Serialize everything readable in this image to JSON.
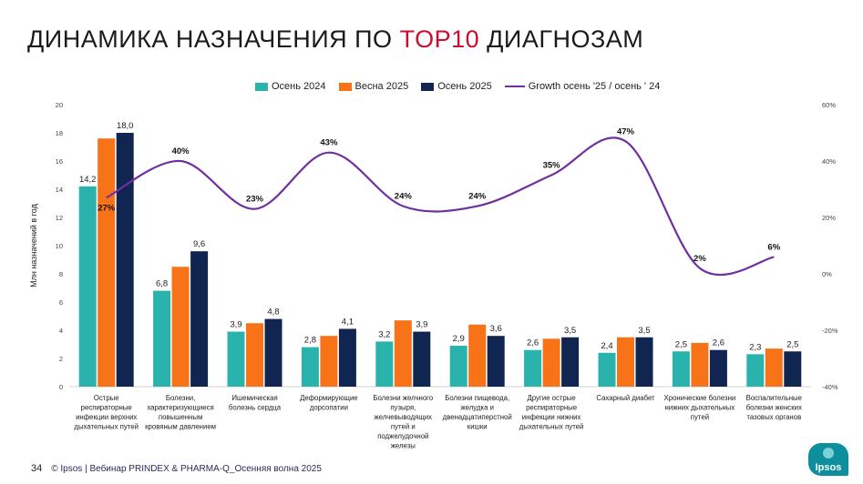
{
  "page": {
    "title_prefix": "ДИНАМИКА НАЗНАЧЕНИЯ ПО ",
    "title_highlight": "TOP10",
    "title_suffix": " ДИАГНОЗАМ",
    "page_number": "34",
    "footer_text": "© Ipsos | Вебинар PRINDEX & PHARMA-Q_Осенняя волна 2025",
    "logo_text": "Ipsos"
  },
  "colors": {
    "autumn_2024": "#2ab3ac",
    "spring_2025": "#f87318",
    "autumn_2025": "#102550",
    "growth": "#7030a0",
    "title_highlight": "#c8102e"
  },
  "chart_data": {
    "type": "bar",
    "title": "ДИНАМИКА НАЗНАЧЕНИЯ ПО TOP10 ДИАГНОЗАМ",
    "ylabel": "Млн назначений в год",
    "ylim": [
      0,
      20
    ],
    "yticks": [
      "0",
      "2",
      "4",
      "6",
      "8",
      "10",
      "12",
      "14",
      "16",
      "18",
      "20"
    ],
    "y2lim": [
      -40,
      60
    ],
    "y2ticks": [
      "-40%",
      "-20%",
      "0%",
      "20%",
      "40%",
      "60%"
    ],
    "categories": [
      "Острые респираторные инфекции верхних дыхательных путей",
      "Болезни, характеризующиеся повышенным кровяным давлением",
      "Ишемическая болезнь сердца",
      "Деформирующие дорсопатии",
      "Болезни желчного пузыря, желчевыводящих путей и поджелудочной железы",
      "Болезни пищевода, желудка и двенадцатиперстной кишки",
      "Другие острые респираторные инфекции нижних дыхательных путей",
      "Сахарный диабет",
      "Хронические болезни нижних дыхательных путей",
      "Воспалительные болезни женских тазовых органов"
    ],
    "category_lines": [
      [
        "Острые",
        "респираторные",
        "инфекции верхних",
        "дыхательных путей"
      ],
      [
        "Болезни,",
        "характеризующиеся",
        "повышенным",
        "кровяным давлением"
      ],
      [
        "Ишемическая",
        "болезнь сердца"
      ],
      [
        "Деформирующие",
        "дорсопатии"
      ],
      [
        "Болезни желчного",
        "пузыря,",
        "желчевыводящих",
        "путей и",
        "поджелудочной",
        "железы"
      ],
      [
        "Болезни пищевода,",
        "желудка и",
        "двенадцатиперстной",
        "кишки"
      ],
      [
        "Другие острые",
        "респираторные",
        "инфекции нижних",
        "дыхательных путей"
      ],
      [
        "Сахарный диабет"
      ],
      [
        "Хронические болезни",
        "нижних дыхательных",
        "путей"
      ],
      [
        "Воспалительные",
        "болезни женских",
        "тазовых органов"
      ]
    ],
    "series": [
      {
        "name": "Осень 2024",
        "type": "bar",
        "values": [
          14.2,
          6.8,
          3.9,
          2.8,
          3.2,
          2.9,
          2.6,
          2.4,
          2.5,
          2.3
        ],
        "labels": [
          "14,2",
          "6,8",
          "3,9",
          "2,8",
          "3,2",
          "2,9",
          "2,6",
          "2,4",
          "2,5",
          "2,3"
        ]
      },
      {
        "name": "Весна 2025",
        "type": "bar",
        "values": [
          17.6,
          8.5,
          4.5,
          3.6,
          4.7,
          4.4,
          3.4,
          3.5,
          3.1,
          2.7
        ]
      },
      {
        "name": "Осень 2025",
        "type": "bar",
        "values": [
          18.0,
          9.6,
          4.8,
          4.1,
          3.9,
          3.6,
          3.5,
          3.5,
          2.6,
          2.5
        ],
        "labels": [
          "18,0",
          "9,6",
          "4,8",
          "4,1",
          "3,9",
          "3,6",
          "3,5",
          "3,5",
          "2,6",
          "2,5"
        ]
      },
      {
        "name": "Growth осень '25 / осень ' 24",
        "type": "line",
        "axis": "right",
        "values": [
          27,
          40,
          23,
          43,
          24,
          24,
          35,
          47,
          2,
          6
        ],
        "labels": [
          "27%",
          "40%",
          "23%",
          "43%",
          "24%",
          "24%",
          "35%",
          "47%",
          "2%",
          "6%"
        ]
      }
    ]
  }
}
